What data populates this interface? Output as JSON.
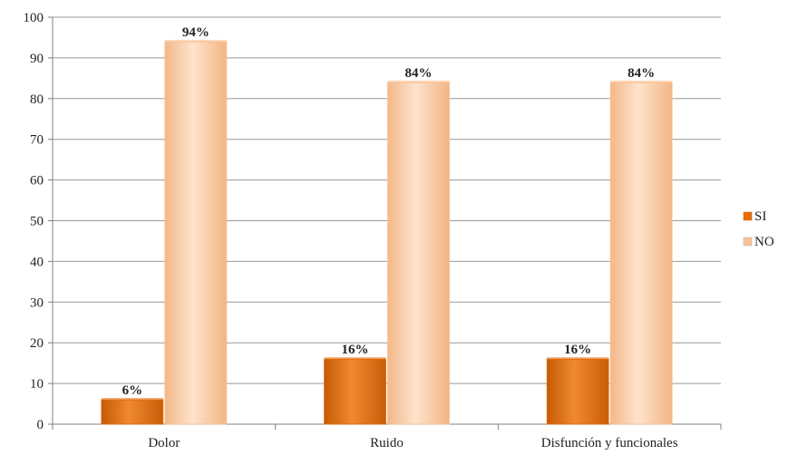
{
  "chart_data": {
    "type": "bar",
    "categories": [
      "Dolor",
      "Ruido",
      "Disfunción y funcionales"
    ],
    "series": [
      {
        "name": "SI",
        "values": [
          6,
          16,
          16
        ],
        "labels": [
          "6%",
          "16%",
          "16%"
        ],
        "color": "#E46C0A"
      },
      {
        "name": "NO",
        "values": [
          94,
          84,
          84
        ],
        "labels": [
          "94%",
          "84%",
          "84%"
        ],
        "color": "#FAC090"
      }
    ],
    "yticks": [
      "0",
      "10",
      "20",
      "30",
      "40",
      "50",
      "60",
      "70",
      "80",
      "90",
      "100"
    ],
    "ylim": [
      0,
      100
    ],
    "grid": true,
    "legend": "right"
  }
}
